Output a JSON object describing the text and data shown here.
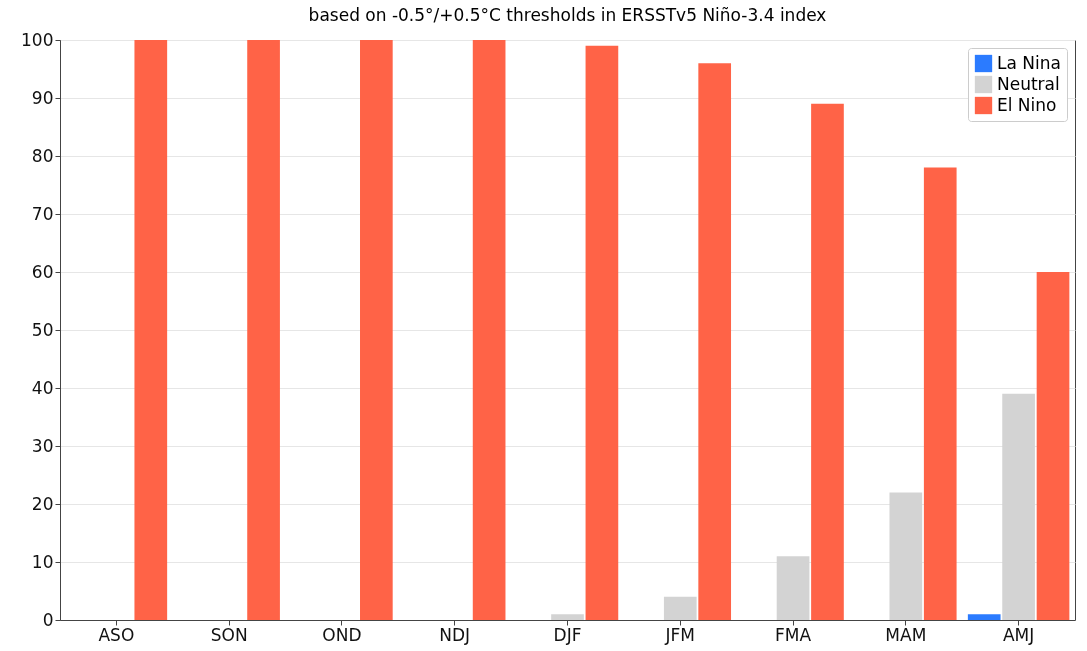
{
  "chart_data": {
    "type": "bar",
    "title": "based on -0.5°/+0.5°C thresholds in ERSSTv5 Niño-3.4 index",
    "categories": [
      "ASO",
      "SON",
      "OND",
      "NDJ",
      "DJF",
      "JFM",
      "FMA",
      "MAM",
      "AMJ"
    ],
    "series": [
      {
        "name": "La Nina",
        "color": "#2b7bff",
        "values": [
          0,
          0,
          0,
          0,
          0,
          0,
          0,
          0,
          1
        ]
      },
      {
        "name": "Neutral",
        "color": "#d3d3d3",
        "values": [
          0,
          0,
          0,
          0,
          1,
          4,
          11,
          22,
          39
        ]
      },
      {
        "name": "El Nino",
        "color": "#ff6347",
        "values": [
          100,
          100,
          100,
          100,
          99,
          96,
          89,
          78,
          60
        ]
      }
    ],
    "ylim": [
      0,
      100
    ],
    "yticks": [
      0,
      10,
      20,
      30,
      40,
      50,
      60,
      70,
      80,
      90,
      100
    ],
    "grid": "y",
    "legend": "top right"
  }
}
